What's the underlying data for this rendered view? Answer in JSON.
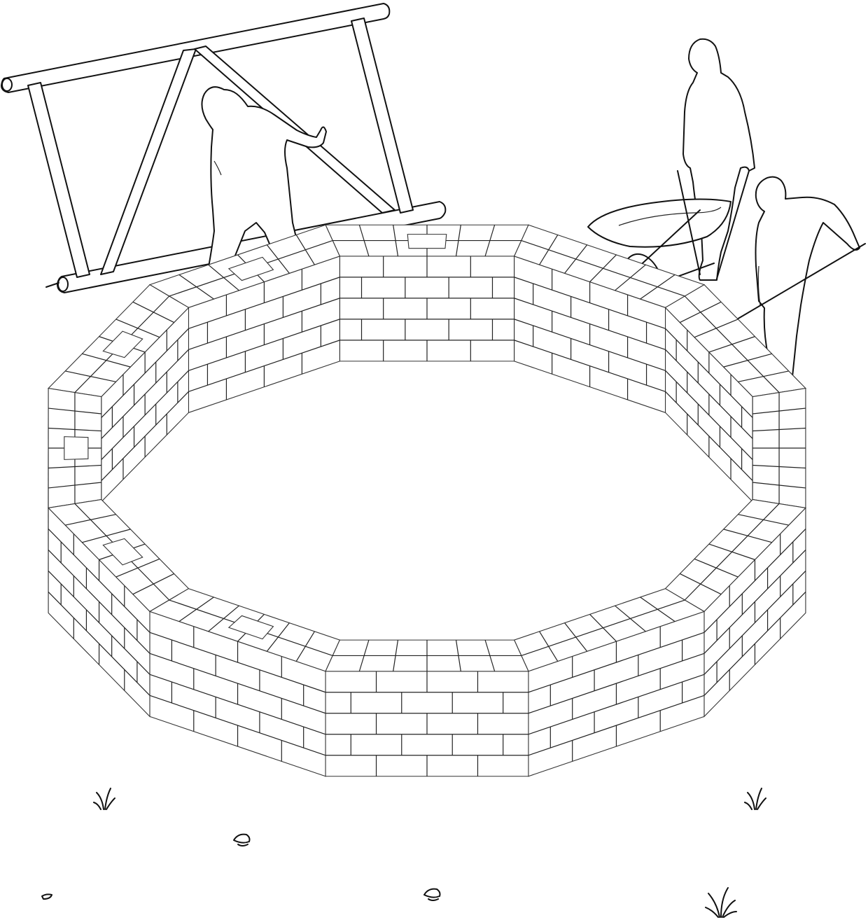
{
  "illustration": {
    "style": "line-art",
    "colors": {
      "background": "#ffffff",
      "ink": "#111111"
    },
    "elements": [
      "steel-frame-template",
      "worker-positioning-frame",
      "worker-with-wheelbarrow",
      "wheelbarrow",
      "worker-with-shovel",
      "shovel",
      "brick-ring-wall",
      "pilaster-openings",
      "grass-tufts",
      "small-stones"
    ],
    "brick_ring": {
      "segments": 12,
      "courses": 5
    }
  }
}
